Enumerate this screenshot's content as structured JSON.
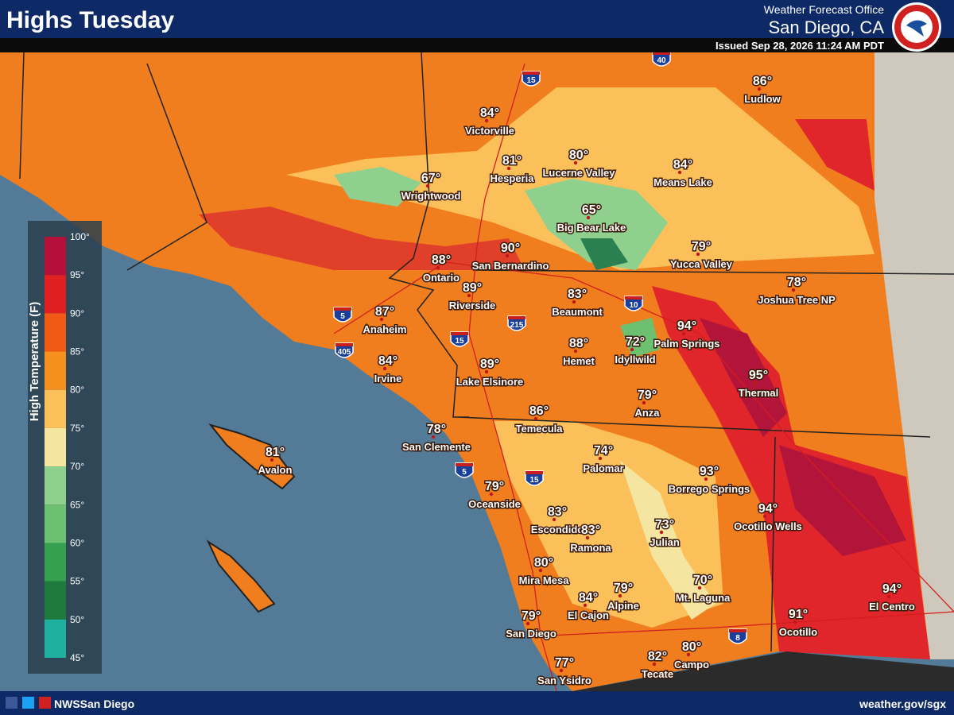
{
  "header": {
    "title": "Highs Tuesday",
    "office": "Weather Forecast Office",
    "location": "San Diego, CA",
    "issued": "Issued Sep 28, 2026 11:24 AM PDT"
  },
  "legend": {
    "title": "High Temperature (F)",
    "ticks": [
      "100°",
      "95°",
      "90°",
      "85°",
      "80°",
      "75°",
      "70°",
      "65°",
      "60°",
      "55°",
      "50°",
      "45°"
    ]
  },
  "cities": [
    {
      "name": "Ludlow",
      "temp": "86°"
    },
    {
      "name": "Victorville",
      "temp": "84°"
    },
    {
      "name": "Hesperia",
      "temp": "81°"
    },
    {
      "name": "Lucerne Valley",
      "temp": "80°"
    },
    {
      "name": "Means Lake",
      "temp": "84°"
    },
    {
      "name": "Wrightwood",
      "temp": "67°"
    },
    {
      "name": "Big Bear Lake",
      "temp": "65°"
    },
    {
      "name": "San Bernardino",
      "temp": "90°"
    },
    {
      "name": "Yucca Valley",
      "temp": "79°"
    },
    {
      "name": "Ontario",
      "temp": "88°"
    },
    {
      "name": "Riverside",
      "temp": "89°"
    },
    {
      "name": "Joshua Tree NP",
      "temp": "78°"
    },
    {
      "name": "Beaumont",
      "temp": "83°"
    },
    {
      "name": "Anaheim",
      "temp": "87°"
    },
    {
      "name": "Palm Springs",
      "temp": "94°"
    },
    {
      "name": "Idyllwild",
      "temp": "72°"
    },
    {
      "name": "Hemet",
      "temp": "88°"
    },
    {
      "name": "Irvine",
      "temp": "84°"
    },
    {
      "name": "Lake Elsinore",
      "temp": "89°"
    },
    {
      "name": "Thermal",
      "temp": "95°"
    },
    {
      "name": "Anza",
      "temp": "79°"
    },
    {
      "name": "Temecula",
      "temp": "86°"
    },
    {
      "name": "San Clemente",
      "temp": "78°"
    },
    {
      "name": "Avalon",
      "temp": "81°"
    },
    {
      "name": "Palomar",
      "temp": "74°"
    },
    {
      "name": "Borrego Springs",
      "temp": "93°"
    },
    {
      "name": "Oceanside",
      "temp": "79°"
    },
    {
      "name": "Ocotillo Wells",
      "temp": "94°"
    },
    {
      "name": "Escondido",
      "temp": "83°"
    },
    {
      "name": "Ramona",
      "temp": "83°"
    },
    {
      "name": "Julian",
      "temp": "73°"
    },
    {
      "name": "Mira Mesa",
      "temp": "80°"
    },
    {
      "name": "Mt. Laguna",
      "temp": "70°"
    },
    {
      "name": "El Centro",
      "temp": "94°"
    },
    {
      "name": "El Cajon",
      "temp": "84°"
    },
    {
      "name": "Alpine",
      "temp": "79°"
    },
    {
      "name": "Ocotillo",
      "temp": "91°"
    },
    {
      "name": "San Diego",
      "temp": "79°"
    },
    {
      "name": "Campo",
      "temp": "80°"
    },
    {
      "name": "Tecate",
      "temp": "82°"
    },
    {
      "name": "San Ysidro",
      "temp": "77°"
    }
  ],
  "highways": [
    "40",
    "15",
    "5",
    "405",
    "10",
    "215",
    "15",
    "5",
    "15",
    "8"
  ],
  "footer": {
    "social": "NWSSan Diego",
    "url": "weather.gov/sgx"
  }
}
